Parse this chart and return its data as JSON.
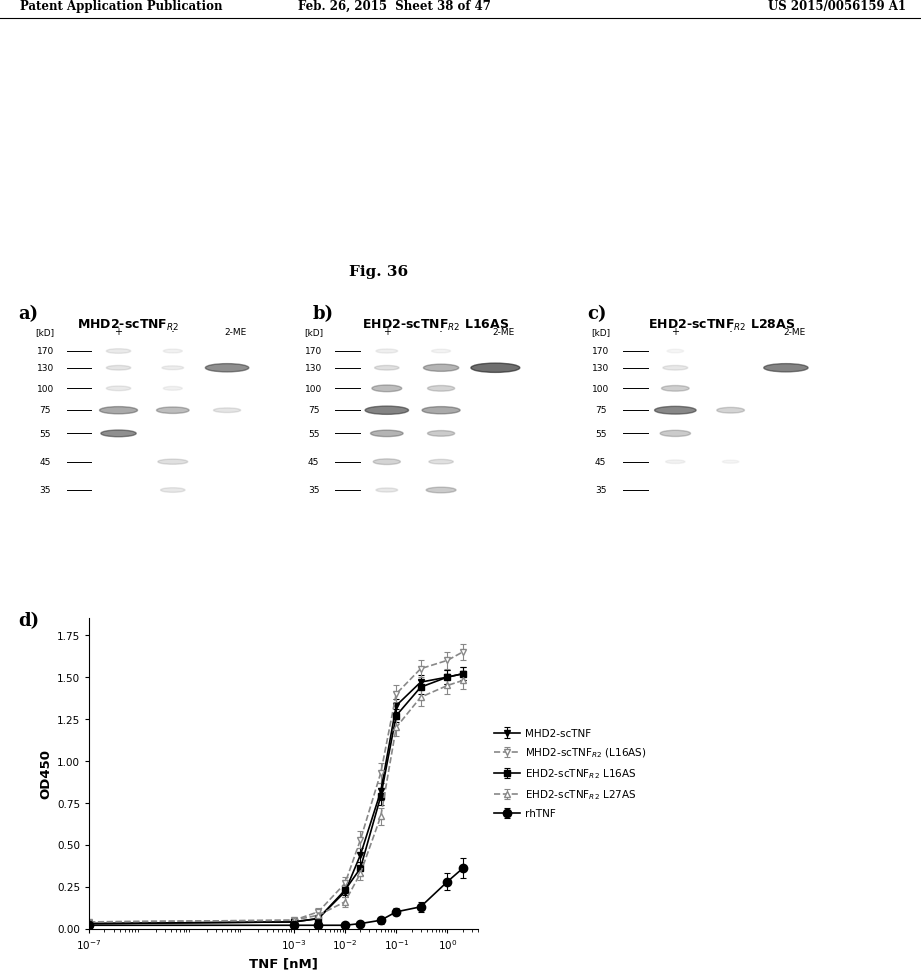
{
  "header_left": "Patent Application Publication",
  "header_mid": "Feb. 26, 2015  Sheet 38 of 47",
  "header_right": "US 2015/0056159 A1",
  "fig_label": "Fig. 36",
  "ylabel_d": "OD450",
  "xlabel_d": "TNF [nM]",
  "yticks_d": [
    0.0,
    0.25,
    0.5,
    0.75,
    1.0,
    1.25,
    1.5,
    1.75
  ],
  "series_MHD2_scTNF": {
    "x": [
      1e-07,
      0.001,
      0.003,
      0.01,
      0.02,
      0.05,
      0.1,
      0.3,
      1.0,
      2.0
    ],
    "y": [
      0.03,
      0.04,
      0.06,
      0.22,
      0.44,
      0.82,
      1.33,
      1.47,
      1.5,
      1.52
    ],
    "yerr": [
      0.01,
      0.01,
      0.02,
      0.03,
      0.04,
      0.05,
      0.04,
      0.04,
      0.04,
      0.04
    ],
    "color": "#000000",
    "marker": "v",
    "linestyle": "-",
    "markersize": 5,
    "linewidth": 1.2
  },
  "series_MHD2_scTNFR2_L16AS": {
    "x": [
      1e-07,
      0.001,
      0.003,
      0.01,
      0.02,
      0.05,
      0.1,
      0.3,
      1.0,
      2.0
    ],
    "y": [
      0.04,
      0.05,
      0.1,
      0.27,
      0.53,
      0.93,
      1.4,
      1.55,
      1.6,
      1.65
    ],
    "yerr": [
      0.01,
      0.01,
      0.02,
      0.04,
      0.05,
      0.06,
      0.05,
      0.05,
      0.05,
      0.05
    ],
    "color": "#888888",
    "marker": "v",
    "linestyle": "--",
    "markersize": 5,
    "linewidth": 1.2,
    "markerfacecolor": "white"
  },
  "series_EHD2_scTNFR2_L16AS": {
    "x": [
      1e-07,
      0.001,
      0.003,
      0.01,
      0.02,
      0.05,
      0.1,
      0.3,
      1.0,
      2.0
    ],
    "y": [
      0.03,
      0.04,
      0.06,
      0.23,
      0.36,
      0.79,
      1.27,
      1.44,
      1.5,
      1.52
    ],
    "yerr": [
      0.01,
      0.01,
      0.02,
      0.03,
      0.04,
      0.05,
      0.04,
      0.04,
      0.04,
      0.04
    ],
    "color": "#000000",
    "marker": "s",
    "linestyle": "-",
    "markersize": 5,
    "linewidth": 1.2
  },
  "series_EHD2_scTNFR2_L27AS": {
    "x": [
      1e-07,
      0.001,
      0.003,
      0.01,
      0.02,
      0.05,
      0.1,
      0.3,
      1.0,
      2.0
    ],
    "y": [
      0.04,
      0.05,
      0.08,
      0.16,
      0.33,
      0.67,
      1.2,
      1.38,
      1.45,
      1.48
    ],
    "yerr": [
      0.01,
      0.01,
      0.02,
      0.03,
      0.04,
      0.05,
      0.05,
      0.05,
      0.05,
      0.05
    ],
    "color": "#888888",
    "marker": "^",
    "linestyle": "--",
    "markersize": 5,
    "linewidth": 1.2,
    "markerfacecolor": "white"
  },
  "series_rhTNF": {
    "x": [
      1e-07,
      0.001,
      0.003,
      0.01,
      0.02,
      0.05,
      0.1,
      0.3,
      1.0,
      2.0
    ],
    "y": [
      0.02,
      0.02,
      0.02,
      0.02,
      0.03,
      0.05,
      0.1,
      0.13,
      0.28,
      0.36
    ],
    "yerr": [
      0.01,
      0.01,
      0.01,
      0.01,
      0.01,
      0.02,
      0.02,
      0.03,
      0.05,
      0.06
    ],
    "color": "#000000",
    "marker": "o",
    "linestyle": "-",
    "markersize": 6,
    "linewidth": 1.2
  },
  "background_color": "#ffffff"
}
